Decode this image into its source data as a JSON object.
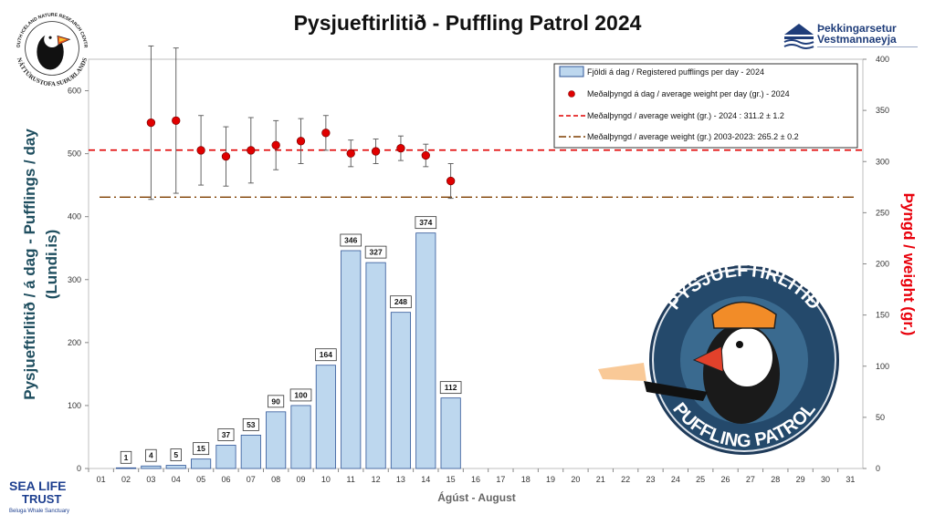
{
  "title": "Pysjueftirlitið  - Puffling Patrol 2024",
  "logos": {
    "left_text_top": "SOUTH ICELAND NATURE RESEARCH CENTRE",
    "left_text_bottom": "NÁTTÚRUSTOFA SUÐURLANDS",
    "right_line1": "Þekkingarsetur",
    "right_line2": "Vestmannaeyja",
    "bottom_line1": "SEA LIFE",
    "bottom_line2": "TRUST",
    "bottom_line3": "Beluga Whale Sanctuary",
    "badge_top": "PYSJUEFTIRLITIÐ",
    "badge_bottom": "PUFFLING PATROL"
  },
  "colors": {
    "bar_fill": "#bdd7ee",
    "bar_stroke": "#2f5597",
    "dot_fill": "#e00000",
    "line_2024": "#e00000",
    "line_hist": "#7f3f00",
    "left_label": "#1f4e5f",
    "right_label": "#e8000b"
  },
  "chart_data": {
    "type": "bar",
    "xlabel": "Ágúst - August",
    "ylabel_left": "Pysjueftirlitið / á dag - Pufflings / day",
    "ylabel_left_sub": "(Lundi.is)",
    "ylabel_right": "Þyngd / weight (gr.)",
    "ylim_left": [
      0,
      650
    ],
    "ylim_right": [
      0,
      400
    ],
    "yticks_left": [
      "0",
      "100",
      "200",
      "300",
      "400",
      "500",
      "600"
    ],
    "yticks_right": [
      "0",
      "50",
      "100",
      "150",
      "200",
      "250",
      "300",
      "350",
      "400"
    ],
    "categories": [
      "01",
      "02",
      "03",
      "04",
      "05",
      "06",
      "07",
      "08",
      "09",
      "10",
      "11",
      "12",
      "13",
      "14",
      "15",
      "16",
      "17",
      "18",
      "19",
      "20",
      "21",
      "22",
      "23",
      "24",
      "25",
      "26",
      "27",
      "28",
      "29",
      "30",
      "31"
    ],
    "series": [
      {
        "name": "Fjöldi á dag / Registered pufflings per day - 2024",
        "axis": "left",
        "values": [
          null,
          1,
          4,
          5,
          15,
          37,
          53,
          90,
          100,
          164,
          346,
          327,
          248,
          374,
          112,
          null,
          null,
          null,
          null,
          null,
          null,
          null,
          null,
          null,
          null,
          null,
          null,
          null,
          null,
          null,
          null
        ]
      },
      {
        "name": "Meðalþyngd á dag / average weight per day (gr.) - 2024",
        "axis": "right",
        "values": [
          null,
          null,
          338,
          340,
          311,
          305,
          311,
          316,
          320,
          328,
          308,
          310,
          313,
          306,
          281,
          null,
          null,
          null,
          null,
          null,
          null,
          null,
          null,
          null,
          null,
          null,
          null,
          null,
          null,
          null,
          null
        ],
        "error": [
          null,
          null,
          75,
          71,
          34,
          29,
          32,
          24,
          22,
          17,
          13,
          12,
          12,
          11,
          17,
          null,
          null,
          null,
          null,
          null,
          null,
          null,
          null,
          null,
          null,
          null,
          null,
          null,
          null,
          null,
          null
        ]
      },
      {
        "name": "Meðalþyngd / average weight (gr.) - 2024 : 311.2 ± 1.2",
        "axis": "right",
        "constant": 311.2
      },
      {
        "name": "Meðalþyngd / average weight (gr.) 2003-2023: 265.2 ± 0.2",
        "axis": "right",
        "constant": 265.2
      }
    ],
    "legend_position": "top-right",
    "grid": false
  }
}
